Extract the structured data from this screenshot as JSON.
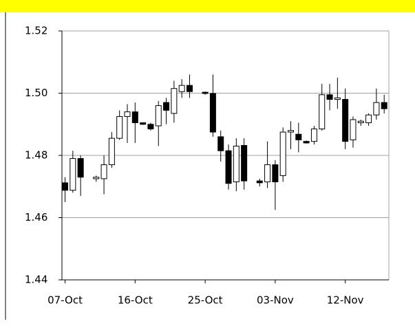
{
  "chart_data": {
    "type": "candlestick",
    "x": [
      0,
      1,
      2,
      4,
      5,
      6,
      7,
      8,
      9,
      10,
      11,
      12,
      13,
      14,
      15,
      16,
      18,
      19,
      20,
      21,
      22,
      23,
      25,
      26,
      27,
      28,
      29,
      30,
      31,
      32,
      33,
      34,
      35,
      36,
      37,
      38,
      39,
      40,
      41
    ],
    "open": [
      1.4712,
      1.4688,
      1.479,
      1.4725,
      1.4725,
      1.477,
      1.4855,
      1.4925,
      1.494,
      1.4905,
      1.49,
      1.4895,
      1.497,
      1.4935,
      1.5005,
      1.5025,
      1.5003,
      1.4999,
      1.486,
      1.4815,
      1.4715,
      1.4832,
      1.4718,
      1.4715,
      1.477,
      1.4735,
      1.4875,
      1.4868,
      1.4845,
      1.4845,
      1.4885,
      1.4995,
      1.498,
      1.498,
      1.485,
      1.4905,
      1.4905,
      1.493,
      1.497
    ],
    "high": [
      1.473,
      1.4815,
      1.48,
      1.4735,
      1.48,
      1.4875,
      1.4945,
      1.4965,
      1.497,
      1.4905,
      1.4905,
      1.4975,
      1.4985,
      1.504,
      1.5045,
      1.506,
      1.5005,
      1.506,
      1.488,
      1.4835,
      1.4855,
      1.4855,
      1.4725,
      1.4845,
      1.4785,
      1.489,
      1.491,
      1.4905,
      1.4848,
      1.4895,
      1.503,
      1.503,
      1.505,
      1.5015,
      1.4925,
      1.4915,
      1.4935,
      1.5015,
      1.4995
    ],
    "low": [
      1.465,
      1.468,
      1.467,
      1.4715,
      1.4675,
      1.476,
      1.485,
      1.484,
      1.484,
      1.4898,
      1.488,
      1.483,
      1.49,
      1.4905,
      1.4985,
      1.4985,
      1.4995,
      1.486,
      1.478,
      1.469,
      1.4685,
      1.469,
      1.47,
      1.4695,
      1.4625,
      1.4715,
      1.482,
      1.481,
      1.4838,
      1.4835,
      1.488,
      1.4945,
      1.495,
      1.482,
      1.4825,
      1.4895,
      1.4895,
      1.4915,
      1.4935
    ],
    "close": [
      1.4688,
      1.479,
      1.473,
      1.473,
      1.477,
      1.4855,
      1.4925,
      1.494,
      1.4905,
      1.49,
      1.4885,
      1.496,
      1.4945,
      1.5015,
      1.5025,
      1.5005,
      1.4999,
      1.4875,
      1.4815,
      1.471,
      1.483,
      1.4718,
      1.4712,
      1.477,
      1.4715,
      1.4875,
      1.488,
      1.485,
      1.484,
      1.4885,
      1.4995,
      1.498,
      1.4985,
      1.4845,
      1.4915,
      1.491,
      1.493,
      1.497,
      1.495
    ],
    "up_color": "#ffffff",
    "down_color": "#000000",
    "xlim": [
      -0.4,
      41.6
    ],
    "xticks": [
      {
        "value": 0,
        "label": "07-Oct"
      },
      {
        "value": 9,
        "label": "16-Oct"
      },
      {
        "value": 18,
        "label": "25-Oct"
      },
      {
        "value": 27,
        "label": "03-Nov"
      },
      {
        "value": 36,
        "label": "12-Nov"
      }
    ],
    "ylim": [
      1.44,
      1.52
    ],
    "yticks": [
      {
        "value": 1.44,
        "label": "1.44"
      },
      {
        "value": 1.46,
        "label": "1.46"
      },
      {
        "value": 1.48,
        "label": "1.48"
      },
      {
        "value": 1.5,
        "label": "1.50"
      },
      {
        "value": 1.52,
        "label": "1.52"
      }
    ],
    "grid": true
  }
}
